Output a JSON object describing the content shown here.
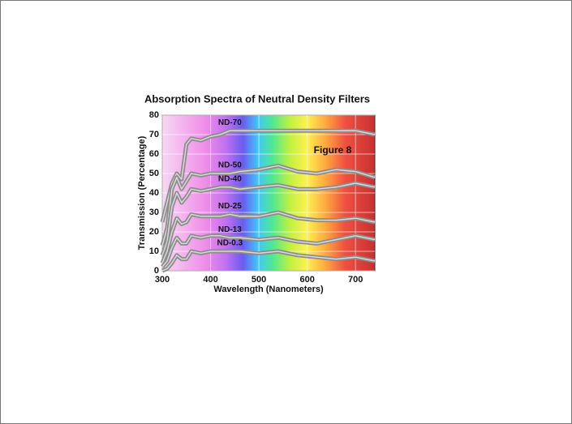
{
  "chart_data": {
    "type": "line",
    "title": "Absorption Spectra of Neutral Density Filters",
    "x_label": "Wavelength (Nanometers)",
    "y_label": "Transmission (Percentage)",
    "annotation": "Figure 8",
    "x": [
      300,
      310,
      320,
      330,
      340,
      350,
      360,
      380,
      400,
      420,
      440,
      460,
      500,
      540,
      580,
      620,
      660,
      700,
      740
    ],
    "series": [
      {
        "name": "ND-70",
        "color": "#8c8c8c",
        "values": [
          25,
          35,
          45,
          50,
          47,
          65,
          68,
          67,
          69,
          70,
          72,
          72,
          72,
          72,
          72,
          72,
          72,
          72,
          70
        ]
      },
      {
        "name": "ND-50",
        "color": "#8c8c8c",
        "values": [
          13,
          22,
          42,
          48,
          42,
          46,
          50,
          49,
          50,
          50,
          50,
          51,
          52,
          54,
          51,
          50,
          52,
          51,
          48
        ]
      },
      {
        "name": "ND-40",
        "color": "#8c8c8c",
        "values": [
          8,
          15,
          33,
          40,
          35,
          38,
          42,
          41,
          42,
          43,
          43,
          42,
          43,
          44,
          42,
          42,
          43,
          45,
          43
        ]
      },
      {
        "name": "ND-25",
        "color": "#8c8c8c",
        "values": [
          4,
          10,
          20,
          27,
          24,
          25,
          29,
          28,
          28,
          28,
          29,
          28,
          28,
          30,
          27,
          26,
          26,
          27,
          25
        ]
      },
      {
        "name": "ND-13",
        "color": "#8c8c8c",
        "values": [
          2,
          5,
          12,
          17,
          14,
          14,
          18,
          17,
          18,
          18,
          17,
          17,
          16,
          17,
          15,
          14,
          16,
          18,
          16
        ]
      },
      {
        "name": "ND-0.3",
        "color": "#8c8c8c",
        "values": [
          0,
          1,
          4,
          8,
          6,
          6,
          10,
          9,
          10,
          10,
          10,
          10,
          9,
          10,
          8,
          7,
          6,
          7,
          5
        ]
      }
    ],
    "xlim": [
      300,
      740
    ],
    "ylim": [
      0,
      80
    ],
    "xticks": [
      300,
      400,
      500,
      600,
      700
    ],
    "yticks": [
      0,
      10,
      20,
      30,
      40,
      50,
      60,
      70,
      80
    ],
    "grid": true
  }
}
